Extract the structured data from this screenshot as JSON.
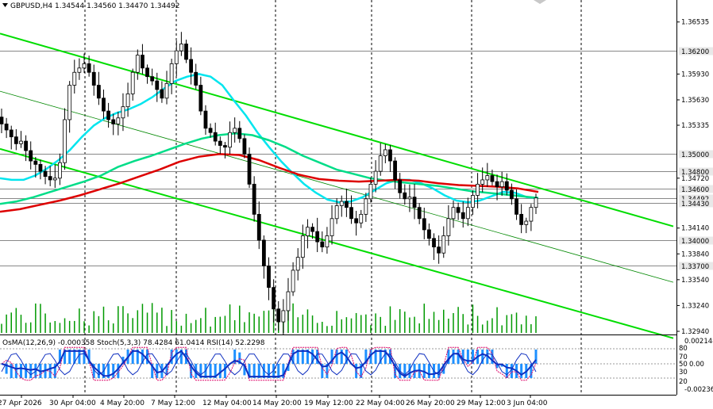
{
  "header": {
    "symbol_line": "GBPUSD,H4  1.34544 1.34560 1.34470 1.34492"
  },
  "indicators_label": "OsMA(12,26,9) -0.000358   Stoch(5,3,3) 78.4284 61.0414   RSI(14) 52.2298",
  "colors": {
    "background": "#ffffff",
    "grid": "#000000",
    "channel": "#00dd00",
    "ma_fast": "#00e5ee",
    "ma_mid": "#00dd88",
    "ma_slow": "#dd0000",
    "candle": "#000000",
    "level_box": "#e8e8e8",
    "osma": "#1e90ff",
    "stoch_main": "#1030c0",
    "stoch_signal": "#dd0066",
    "rsi": "#00ccff"
  },
  "chart_data": {
    "type": "candlestick",
    "symbol": "GBPUSD",
    "timeframe": "H4",
    "ylim": [
      1.3294,
      1.3668
    ],
    "y_ticks": [
      "1.36535",
      "1.35930",
      "1.35630",
      "1.35335",
      "1.34720",
      "1.34140",
      "1.33840",
      "1.33540",
      "1.33240",
      "1.32940"
    ],
    "x_ticks": [
      "27 Apr 2026",
      "30 Apr 04:00",
      "4 May 20:00",
      "7 May 12:00",
      "12 May 04:00",
      "14 May 20:00",
      "19 May 12:00",
      "22 May 04:00",
      "26 May 20:00",
      "29 May 12:00",
      "3 Jun 04:00"
    ],
    "levels": [
      {
        "value": 1.362,
        "label": "1.36200"
      },
      {
        "value": 1.35,
        "label": "1.35000"
      },
      {
        "value": 1.348,
        "label": "1.34800"
      },
      {
        "value": 1.346,
        "label": "1.34600"
      },
      {
        "value": 1.3449,
        "label": "1.34492"
      },
      {
        "value": 1.3443,
        "label": "1.34430"
      },
      {
        "value": 1.34,
        "label": "1.34000"
      },
      {
        "value": 1.337,
        "label": "1.33700"
      }
    ],
    "close": [
      1.3535,
      1.3528,
      1.352,
      1.3512,
      1.3515,
      1.3504,
      1.3492,
      1.3488,
      1.348,
      1.3474,
      1.347,
      1.3472,
      1.349,
      1.354,
      1.358,
      1.3595,
      1.36,
      1.3605,
      1.3595,
      1.358,
      1.3565,
      1.355,
      1.354,
      1.3535,
      1.3542,
      1.3555,
      1.357,
      1.3595,
      1.3615,
      1.36,
      1.359,
      1.3585,
      1.3575,
      1.3565,
      1.3582,
      1.3605,
      1.362,
      1.3628,
      1.361,
      1.3595,
      1.358,
      1.355,
      1.353,
      1.3525,
      1.3515,
      1.351,
      1.3508,
      1.3525,
      1.353,
      1.3518,
      1.35,
      1.3465,
      1.343,
      1.34,
      1.337,
      1.3345,
      1.332,
      1.3305,
      1.3318,
      1.334,
      1.3365,
      1.338,
      1.3405,
      1.3415,
      1.341,
      1.3398,
      1.3392,
      1.3405,
      1.3425,
      1.344,
      1.3445,
      1.3438,
      1.3425,
      1.342,
      1.343,
      1.3448,
      1.3465,
      1.348,
      1.3498,
      1.3505,
      1.3492,
      1.347,
      1.3455,
      1.3448,
      1.345,
      1.3438,
      1.3425,
      1.3412,
      1.3402,
      1.3392,
      1.3385,
      1.3405,
      1.3425,
      1.3438,
      1.3432,
      1.3425,
      1.3438,
      1.3452,
      1.3465,
      1.347,
      1.3475,
      1.3468,
      1.3462,
      1.3468,
      1.3458,
      1.3448,
      1.343,
      1.3418,
      1.3422,
      1.3438,
      1.3449
    ],
    "series": [
      {
        "name": "Channel upper",
        "x": [
          0,
          848
        ],
        "y": [
          1.364,
          1.3416
        ]
      },
      {
        "name": "Channel lower",
        "x": [
          0,
          848
        ],
        "y": [
          1.3506,
          1.3286
        ]
      },
      {
        "name": "Channel middle",
        "x": [
          0,
          848
        ],
        "y": [
          1.3573,
          1.3351
        ]
      },
      {
        "name": "Fast EMA",
        "values": [
          1.3472,
          1.347,
          1.347,
          1.3475,
          1.3483,
          1.3493,
          1.3505,
          1.352,
          1.3533,
          1.3542,
          1.3548,
          1.3552,
          1.3558,
          1.3566,
          1.3576,
          1.3585,
          1.359,
          1.3593,
          1.359,
          1.358,
          1.3562,
          1.3545,
          1.3525,
          1.3508,
          1.3492,
          1.3478,
          1.3465,
          1.3455,
          1.3447,
          1.3444,
          1.3445,
          1.345,
          1.3458,
          1.3466,
          1.347,
          1.347,
          1.3466,
          1.346,
          1.3452,
          1.3446,
          1.3444,
          1.3446,
          1.3451,
          1.3456,
          1.3455,
          1.345,
          1.3449
        ]
      },
      {
        "name": "Medium EMA",
        "values": [
          1.3442,
          1.3445,
          1.345,
          1.3456,
          1.3462,
          1.3468,
          1.3475,
          1.3485,
          1.3492,
          1.3498,
          1.3505,
          1.3512,
          1.3518,
          1.3522,
          1.3524,
          1.3522,
          1.3516,
          1.3508,
          1.3498,
          1.349,
          1.3482,
          1.3477,
          1.3472,
          1.3469,
          1.3467,
          1.3465,
          1.3463,
          1.346,
          1.3457,
          1.3455,
          1.3453,
          1.3451,
          1.3449
        ]
      },
      {
        "name": "Slow EMA",
        "values": [
          1.3433,
          1.3436,
          1.3441,
          1.3446,
          1.3452,
          1.3459,
          1.3466,
          1.3474,
          1.3482,
          1.3491,
          1.3497,
          1.35,
          1.3499,
          1.3493,
          1.3484,
          1.3476,
          1.3471,
          1.3469,
          1.3468,
          1.3469,
          1.347,
          1.3469,
          1.3466,
          1.3464,
          1.3463,
          1.3462,
          1.346,
          1.3456
        ]
      }
    ]
  }
}
